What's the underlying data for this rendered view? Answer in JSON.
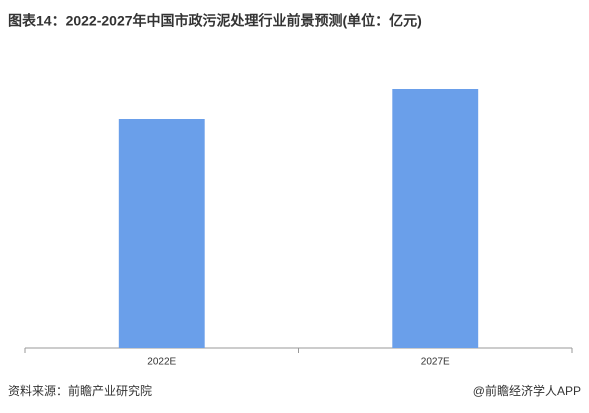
{
  "chart_data": {
    "type": "bar",
    "title": "图表14：2022-2027年中国市政污泥处理行业前景预测(单位：亿元)",
    "categories": [
      "2022E",
      "2027E"
    ],
    "values": [
      229,
      259
    ],
    "color": "#6a9fea",
    "ylim": [
      0,
      303
    ],
    "source": "资料来源：前瞻产业研究院",
    "credit": "@前瞻经济学人APP"
  }
}
